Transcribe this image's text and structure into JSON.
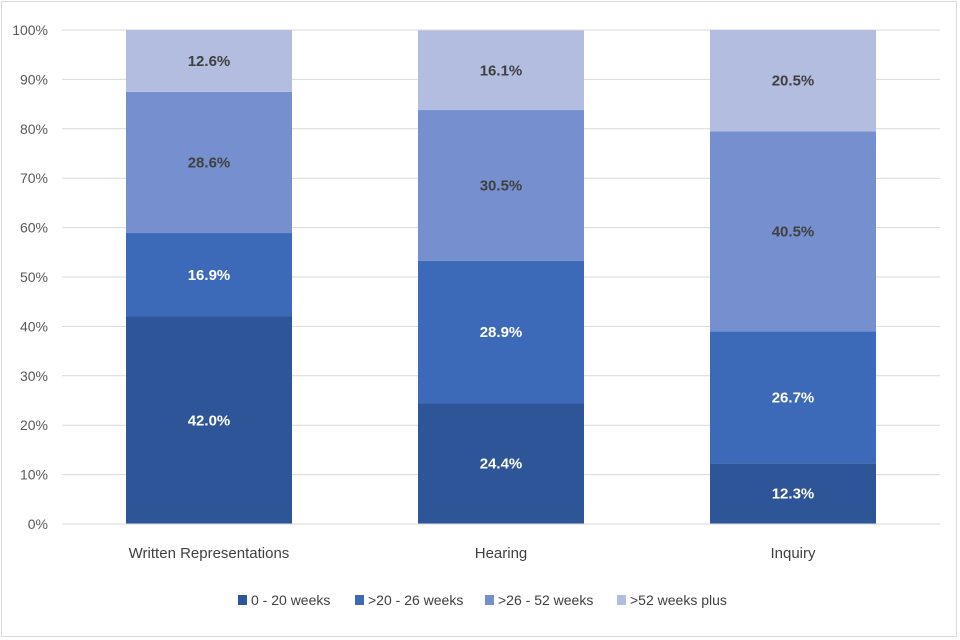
{
  "chart_data": {
    "type": "bar",
    "stacked": true,
    "percent_stacked": true,
    "title": "",
    "xlabel": "",
    "ylabel": "",
    "ylim": [
      0,
      100
    ],
    "yticks": [
      "0%",
      "10%",
      "20%",
      "30%",
      "40%",
      "50%",
      "60%",
      "70%",
      "80%",
      "90%",
      "100%"
    ],
    "categories": [
      "Written Representations",
      "Hearing",
      "Inquiry"
    ],
    "series": [
      {
        "name": "0 - 20 weeks",
        "color": "#2e5597",
        "values": [
          42.0,
          24.4,
          12.3
        ],
        "labels": [
          "42.0%",
          "24.4%",
          "12.3%"
        ]
      },
      {
        "name": ">20 - 26 weeks",
        "color": "#3c69b8",
        "values": [
          16.9,
          28.9,
          26.7
        ],
        "labels": [
          "16.9%",
          "28.9%",
          "26.7%"
        ]
      },
      {
        "name": ">26 - 52 weeks",
        "color": "#7690cf",
        "values": [
          28.6,
          30.5,
          40.5
        ],
        "labels": [
          "28.6%",
          "30.5%",
          "40.5%"
        ]
      },
      {
        "name": ">52 weeks plus",
        "color": "#b3bde0",
        "values": [
          12.6,
          16.1,
          20.5
        ],
        "labels": [
          "12.6%",
          "16.1%",
          "20.5%"
        ]
      }
    ],
    "grid": true,
    "legend_position": "bottom"
  }
}
